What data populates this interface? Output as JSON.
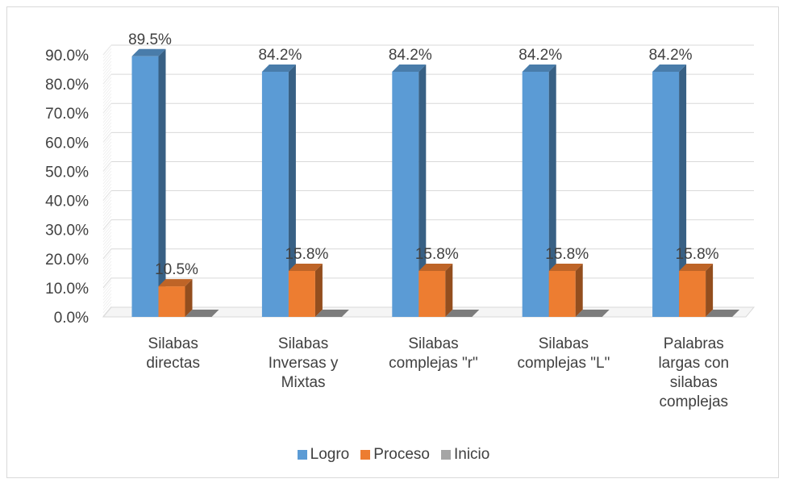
{
  "chart_data": {
    "type": "bar",
    "categories": [
      [
        "Silabas",
        "directas"
      ],
      [
        "Silabas",
        "Inversas y",
        "Mixtas"
      ],
      [
        "Silabas",
        "complejas \"r\""
      ],
      [
        "Silabas",
        "complejas \"L\""
      ],
      [
        "Palabras",
        "largas con",
        "silabas",
        "complejas"
      ]
    ],
    "series": [
      {
        "name": "Logro",
        "values": [
          89.5,
          84.2,
          84.2,
          84.2,
          84.2
        ],
        "labels": [
          "89.5%",
          "84.2%",
          "84.2%",
          "84.2%",
          "84.2%"
        ]
      },
      {
        "name": "Proceso",
        "values": [
          10.5,
          15.8,
          15.8,
          15.8,
          15.8
        ],
        "labels": [
          "10.5%",
          "15.8%",
          "15.8%",
          "15.8%",
          "15.8%"
        ]
      },
      {
        "name": "Inicio",
        "values": [
          0,
          0,
          0,
          0,
          0
        ],
        "labels": [
          "",
          "",
          "",
          "",
          ""
        ]
      }
    ],
    "colors": {
      "Logro": "#5b9bd5",
      "Proceso": "#ed7d31",
      "Inicio": "#a5a5a5"
    },
    "ylim": [
      0,
      90
    ],
    "yticks": [
      "0.0%",
      "10.0%",
      "20.0%",
      "30.0%",
      "40.0%",
      "50.0%",
      "60.0%",
      "70.0%",
      "80.0%",
      "90.0%"
    ],
    "grid": true,
    "legend_position": "bottom",
    "style": "3d-clustered-column"
  }
}
